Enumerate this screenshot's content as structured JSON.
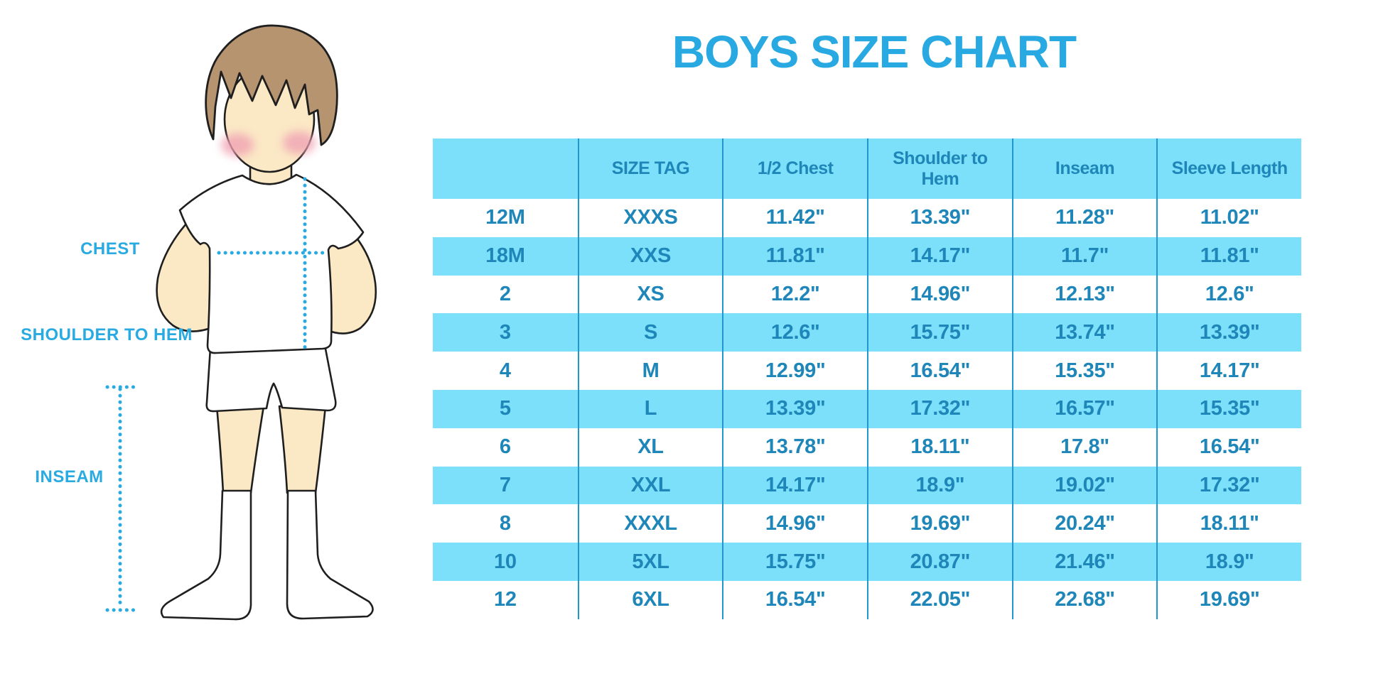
{
  "colors": {
    "title_blue": "#29A9E1",
    "label_blue": "#29ABE2",
    "dotted_line_blue": "#29ABE2",
    "table_band_cyan": "#7CE0FA",
    "table_divider_blue": "#2196CF",
    "table_text_blue": "#1E86B8",
    "hair_brown": "#B6946F",
    "skin_tone": "#FBE8C5",
    "blush_pink": "#F0A3B4",
    "outline_dark": "#1F1F1F"
  },
  "diagram": {
    "labels": {
      "chest": "CHEST",
      "shoulder_to_hem": "SHOULDER TO HEM",
      "inseam": "INSEAM"
    }
  },
  "chart_data": {
    "type": "table",
    "title": "BOYS SIZE CHART",
    "units": "inches",
    "columns": [
      "",
      "SIZE TAG",
      "1/2 Chest",
      "Shoulder to Hem",
      "Inseam",
      "Sleeve Length"
    ],
    "rows": [
      [
        "12M",
        "XXXS",
        "11.42\"",
        "13.39\"",
        "11.28\"",
        "11.02\""
      ],
      [
        "18M",
        "XXS",
        "11.81\"",
        "14.17\"",
        "11.7\"",
        "11.81\""
      ],
      [
        "2",
        "XS",
        "12.2\"",
        "14.96\"",
        "12.13\"",
        "12.6\""
      ],
      [
        "3",
        "S",
        "12.6\"",
        "15.75\"",
        "13.74\"",
        "13.39\""
      ],
      [
        "4",
        "M",
        "12.99\"",
        "16.54\"",
        "15.35\"",
        "14.17\""
      ],
      [
        "5",
        "L",
        "13.39\"",
        "17.32\"",
        "16.57\"",
        "15.35\""
      ],
      [
        "6",
        "XL",
        "13.78\"",
        "18.11\"",
        "17.8\"",
        "16.54\""
      ],
      [
        "7",
        "XXL",
        "14.17\"",
        "18.9\"",
        "19.02\"",
        "17.32\""
      ],
      [
        "8",
        "XXXL",
        "14.96\"",
        "19.69\"",
        "20.24\"",
        "18.11\""
      ],
      [
        "10",
        "5XL",
        "15.75\"",
        "20.87\"",
        "21.46\"",
        "18.9\""
      ],
      [
        "12",
        "6XL",
        "16.54\"",
        "22.05\"",
        "22.68\"",
        "19.69\""
      ]
    ],
    "row_striping": "header and alternate rows (18M, 3, 5, 7, 10) highlighted cyan",
    "legend_position": "none",
    "grid": "vertical column dividers only"
  }
}
